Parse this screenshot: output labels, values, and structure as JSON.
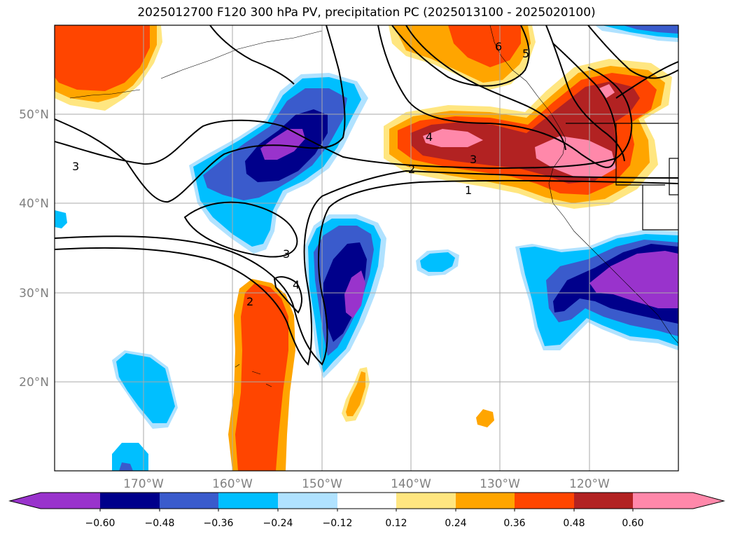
{
  "title": "2025012700 F120 300 hPa PV, precipitation PC (2025013100 - 2025020100)",
  "map": {
    "lat_labels": [
      "50°N",
      "40°N",
      "30°N",
      "20°N"
    ],
    "lon_labels": [
      "170°W",
      "160°W",
      "150°W",
      "140°W",
      "130°W",
      "120°W"
    ],
    "contour_labels": [
      "1",
      "2",
      "2",
      "3",
      "3",
      "3",
      "4",
      "4",
      "5",
      "6"
    ]
  },
  "colorbar": {
    "colors": [
      "#9933cc",
      "#00008b",
      "#3a5bcc",
      "#00bfff",
      "#b0e2ff",
      "#ffffff",
      "#ffe680",
      "#ffa500",
      "#ff4500",
      "#b22222",
      "#ff88aa"
    ],
    "tick_labels": [
      "−0.60",
      "−0.48",
      "−0.36",
      "−0.24",
      "−0.12",
      "0.12",
      "0.24",
      "0.36",
      "0.48",
      "0.60"
    ]
  }
}
